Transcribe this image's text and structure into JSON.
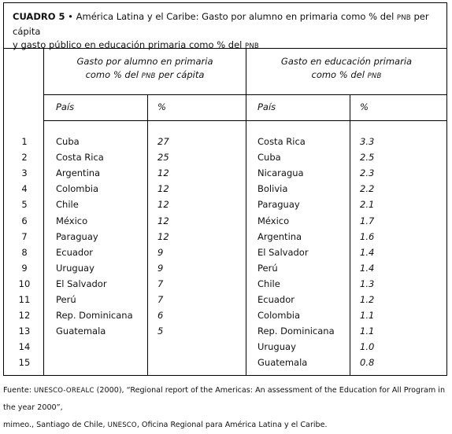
{
  "title": {
    "label": "CUADRO 5",
    "bullet": "•",
    "line1": "América Latina y el Caribe: Gasto por alumno en primaria como % del",
    "pnb_a": "PNB",
    "line1b": "per cápita",
    "line2": "y gasto público en educación primaria como % del",
    "pnb_b": "PNB"
  },
  "left_group": {
    "heading_line1": "Gasto por alumno en primaria",
    "heading_line2_pre": "como % del",
    "heading_pnb": "PNB",
    "heading_line2_post": "per cápita",
    "col_country": "País",
    "col_value": "%"
  },
  "right_group": {
    "heading_line1": "Gasto en educación primaria",
    "heading_line2_pre": "como % del",
    "heading_pnb": "PNB",
    "col_country": "País",
    "col_value": "%"
  },
  "rows": [
    {
      "n": "1",
      "left_country": "Cuba",
      "left_value": "27",
      "right_country": "Costa Rica",
      "right_value": "3.3"
    },
    {
      "n": "2",
      "left_country": "Costa Rica",
      "left_value": "25",
      "right_country": "Cuba",
      "right_value": "2.5"
    },
    {
      "n": "3",
      "left_country": "Argentina",
      "left_value": "12",
      "right_country": "Nicaragua",
      "right_value": "2.3"
    },
    {
      "n": "4",
      "left_country": "Colombia",
      "left_value": "12",
      "right_country": "Bolivia",
      "right_value": "2.2"
    },
    {
      "n": "5",
      "left_country": "Chile",
      "left_value": "12",
      "right_country": "Paraguay",
      "right_value": "2.1"
    },
    {
      "n": "6",
      "left_country": "México",
      "left_value": "12",
      "right_country": "México",
      "right_value": "1.7"
    },
    {
      "n": "7",
      "left_country": "Paraguay",
      "left_value": "12",
      "right_country": "Argentina",
      "right_value": "1.6"
    },
    {
      "n": "8",
      "left_country": "Ecuador",
      "left_value": "9",
      "right_country": "El Salvador",
      "right_value": "1.4"
    },
    {
      "n": "9",
      "left_country": "Uruguay",
      "left_value": "9",
      "right_country": "Perú",
      "right_value": "1.4"
    },
    {
      "n": "10",
      "left_country": "El Salvador",
      "left_value": "7",
      "right_country": "Chile",
      "right_value": "1.3"
    },
    {
      "n": "11",
      "left_country": "Perú",
      "left_value": "7",
      "right_country": "Ecuador",
      "right_value": "1.2"
    },
    {
      "n": "12",
      "left_country": "Rep. Dominicana",
      "left_value": "6",
      "right_country": "Colombia",
      "right_value": "1.1"
    },
    {
      "n": "13",
      "left_country": "Guatemala",
      "left_value": "5",
      "right_country": "Rep. Dominicana",
      "right_value": "1.1"
    },
    {
      "n": "14",
      "left_country": "",
      "left_value": "",
      "right_country": "Uruguay",
      "right_value": "1.0"
    },
    {
      "n": "15",
      "left_country": "",
      "left_value": "",
      "right_country": "Guatemala",
      "right_value": "0.8"
    }
  ],
  "source": {
    "line1_pre": "Fuente:",
    "line1_org": "UNESCO-OREALC",
    "line1_post": "(2000), “Regional report of the Americas: An assessment of the Education for All Program in the year 2000”,",
    "line2_pre": "mimeo., Santiago de Chile,",
    "line2_org": "UNESCO",
    "line2_post": ", Oficina Regional para América Latina y el Caribe."
  }
}
